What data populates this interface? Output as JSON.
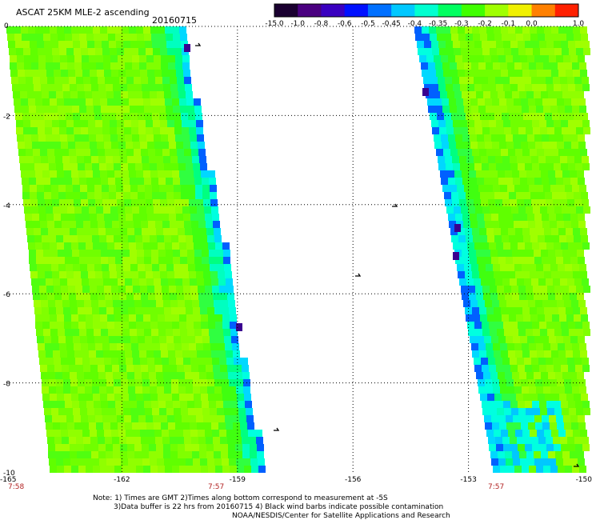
{
  "header": {
    "title": "ASCAT 25KM MLE-2 ascending",
    "date": "20160715"
  },
  "colorbar": {
    "labels": [
      "-15.0",
      "-1.0",
      "-0.8",
      "-0.6",
      "-0.5",
      "-0.45",
      "-0.4",
      "-0.35",
      "-0.3",
      "-0.2",
      "-0.1",
      "0.0",
      "1.0"
    ],
    "colors": [
      "#1a0030",
      "#4a0080",
      "#3a00c0",
      "#0010ff",
      "#0070ff",
      "#00c8ff",
      "#00ffd0",
      "#00ff60",
      "#40ff00",
      "#a0ff00",
      "#f0f000",
      "#ff8000",
      "#ff2000"
    ]
  },
  "axes": {
    "y_labels": [
      "0",
      "-2",
      "-4",
      "-6",
      "-8",
      "-10"
    ],
    "x_labels": [
      "-165",
      "-162",
      "-159",
      "-156",
      "-153",
      "-150"
    ],
    "time_labels": [
      "7:58",
      "7:57",
      "7:57"
    ]
  },
  "notes": {
    "line1": "Note: 1) Times are GMT 2)Times along bottom correspond to measurement at -5S",
    "line2": "3)Data buffer is 22 hrs from 20160715 4) Black wind barbs indicate possible contamination",
    "line3": "NOAA/NESDIS/Center for Satellite Applications and Research"
  }
}
